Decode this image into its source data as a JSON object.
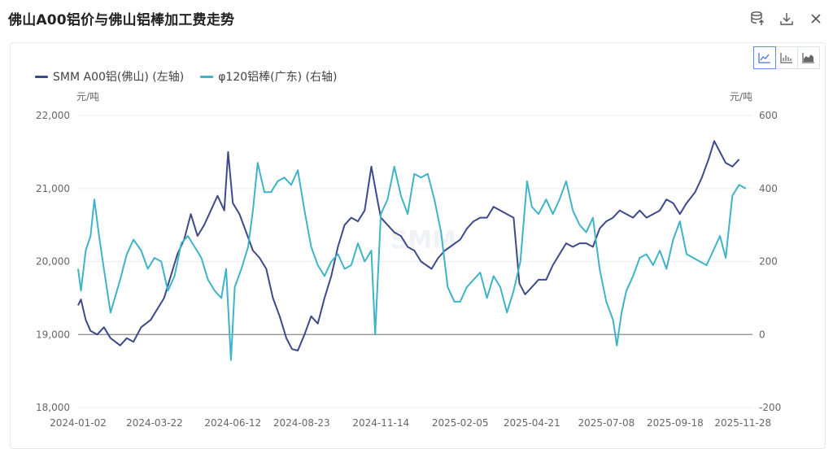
{
  "header": {
    "title": "佛山A00铝价与佛山铝棒加工费走势",
    "actions": [
      {
        "name": "database-export-icon"
      },
      {
        "name": "download-icon"
      },
      {
        "name": "close-icon"
      }
    ]
  },
  "toolbar": {
    "chart_types": [
      {
        "name": "line-chart-icon",
        "active": true
      },
      {
        "name": "bar-chart-icon",
        "active": false
      },
      {
        "name": "area-chart-icon",
        "active": false
      }
    ]
  },
  "watermark": "SMM",
  "colors": {
    "left_series": "#3d4a8a",
    "right_series": "#3fb3c8",
    "axis_text": "#666666",
    "grid": "#eeeeee",
    "zero_line": "#888888"
  },
  "chart_data": {
    "type": "line",
    "grid": true,
    "legend_position": "top-left",
    "x_tick_labels": [
      "2024-01-02",
      "2024-03-22",
      "2024-06-12",
      "2024-08-23",
      "2024-11-14",
      "2025-02-05",
      "2025-04-21",
      "2025-07-08",
      "2025-09-18",
      "2025-11-28"
    ],
    "x_range": [
      "2024-01-02",
      "2025-12-08"
    ],
    "y_left": {
      "unit": "元/吨",
      "ylim": [
        18000,
        22000
      ],
      "ticks": [
        "22,000",
        "21,000",
        "20,000",
        "19,000",
        "18,000"
      ]
    },
    "y_right": {
      "unit": "元/吨",
      "ylim": [
        -200,
        600
      ],
      "ticks": [
        "600",
        "400",
        "200",
        "0",
        "-200"
      ]
    },
    "series": [
      {
        "name": "SMM A00铝(佛山) (左轴)",
        "axis": "left",
        "points": [
          [
            "2024-01-02",
            19400
          ],
          [
            "2024-01-05",
            19480
          ],
          [
            "2024-01-10",
            19200
          ],
          [
            "2024-01-15",
            19050
          ],
          [
            "2024-01-22",
            19000
          ],
          [
            "2024-01-29",
            19100
          ],
          [
            "2024-02-05",
            18950
          ],
          [
            "2024-02-15",
            18850
          ],
          [
            "2024-02-22",
            18950
          ],
          [
            "2024-02-29",
            18900
          ],
          [
            "2024-03-08",
            19100
          ],
          [
            "2024-03-18",
            19200
          ],
          [
            "2024-03-25",
            19350
          ],
          [
            "2024-04-01",
            19500
          ],
          [
            "2024-04-08",
            19800
          ],
          [
            "2024-04-15",
            20100
          ],
          [
            "2024-04-22",
            20300
          ],
          [
            "2024-04-29",
            20650
          ],
          [
            "2024-05-06",
            20350
          ],
          [
            "2024-05-13",
            20500
          ],
          [
            "2024-05-20",
            20700
          ],
          [
            "2024-05-27",
            20900
          ],
          [
            "2024-06-03",
            20700
          ],
          [
            "2024-06-07",
            21500
          ],
          [
            "2024-06-12",
            20800
          ],
          [
            "2024-06-19",
            20650
          ],
          [
            "2024-06-26",
            20400
          ],
          [
            "2024-07-03",
            20150
          ],
          [
            "2024-07-10",
            20050
          ],
          [
            "2024-07-17",
            19900
          ],
          [
            "2024-07-24",
            19500
          ],
          [
            "2024-07-31",
            19250
          ],
          [
            "2024-08-07",
            18950
          ],
          [
            "2024-08-13",
            18800
          ],
          [
            "2024-08-19",
            18780
          ],
          [
            "2024-08-26",
            19000
          ],
          [
            "2024-09-02",
            19250
          ],
          [
            "2024-09-09",
            19150
          ],
          [
            "2024-09-16",
            19500
          ],
          [
            "2024-09-23",
            19800
          ],
          [
            "2024-09-30",
            20200
          ],
          [
            "2024-10-07",
            20500
          ],
          [
            "2024-10-14",
            20600
          ],
          [
            "2024-10-21",
            20550
          ],
          [
            "2024-10-28",
            20700
          ],
          [
            "2024-11-04",
            21300
          ],
          [
            "2024-11-11",
            20800
          ],
          [
            "2024-11-14",
            20600
          ],
          [
            "2024-11-21",
            20500
          ],
          [
            "2024-11-28",
            20400
          ],
          [
            "2024-12-05",
            20350
          ],
          [
            "2024-12-12",
            20200
          ],
          [
            "2024-12-19",
            20150
          ],
          [
            "2024-12-26",
            20000
          ],
          [
            "2025-01-06",
            19900
          ],
          [
            "2025-01-13",
            20050
          ],
          [
            "2025-01-20",
            20150
          ],
          [
            "2025-02-05",
            20300
          ],
          [
            "2025-02-12",
            20450
          ],
          [
            "2025-02-19",
            20550
          ],
          [
            "2025-02-26",
            20600
          ],
          [
            "2025-03-05",
            20600
          ],
          [
            "2025-03-12",
            20750
          ],
          [
            "2025-03-19",
            20700
          ],
          [
            "2025-03-26",
            20650
          ],
          [
            "2025-04-02",
            20600
          ],
          [
            "2025-04-08",
            19700
          ],
          [
            "2025-04-14",
            19550
          ],
          [
            "2025-04-21",
            19650
          ],
          [
            "2025-04-28",
            19750
          ],
          [
            "2025-05-06",
            19750
          ],
          [
            "2025-05-13",
            19950
          ],
          [
            "2025-05-20",
            20100
          ],
          [
            "2025-05-27",
            20250
          ],
          [
            "2025-06-03",
            20200
          ],
          [
            "2025-06-10",
            20250
          ],
          [
            "2025-06-17",
            20250
          ],
          [
            "2025-06-24",
            20200
          ],
          [
            "2025-07-01",
            20450
          ],
          [
            "2025-07-08",
            20550
          ],
          [
            "2025-07-15",
            20600
          ],
          [
            "2025-07-22",
            20700
          ],
          [
            "2025-07-29",
            20650
          ],
          [
            "2025-08-05",
            20600
          ],
          [
            "2025-08-12",
            20700
          ],
          [
            "2025-08-19",
            20600
          ],
          [
            "2025-08-26",
            20650
          ],
          [
            "2025-09-02",
            20700
          ],
          [
            "2025-09-09",
            20850
          ],
          [
            "2025-09-16",
            20800
          ],
          [
            "2025-09-23",
            20650
          ],
          [
            "2025-09-30",
            20800
          ],
          [
            "2025-10-09",
            20950
          ],
          [
            "2025-10-16",
            21150
          ],
          [
            "2025-10-23",
            21400
          ],
          [
            "2025-10-29",
            21650
          ],
          [
            "2025-11-04",
            21500
          ],
          [
            "2025-11-10",
            21350
          ],
          [
            "2025-11-17",
            21300
          ],
          [
            "2025-11-24",
            21400
          ]
        ]
      },
      {
        "name": "φ120铝棒(广东) (右轴)",
        "axis": "right",
        "points": [
          [
            "2024-01-02",
            180
          ],
          [
            "2024-01-05",
            120
          ],
          [
            "2024-01-10",
            230
          ],
          [
            "2024-01-15",
            270
          ],
          [
            "2024-01-19",
            370
          ],
          [
            "2024-01-24",
            270
          ],
          [
            "2024-01-29",
            180
          ],
          [
            "2024-02-05",
            60
          ],
          [
            "2024-02-15",
            150
          ],
          [
            "2024-02-22",
            220
          ],
          [
            "2024-02-29",
            260
          ],
          [
            "2024-03-08",
            230
          ],
          [
            "2024-03-15",
            180
          ],
          [
            "2024-03-22",
            210
          ],
          [
            "2024-03-29",
            200
          ],
          [
            "2024-04-05",
            120
          ],
          [
            "2024-04-12",
            160
          ],
          [
            "2024-04-19",
            250
          ],
          [
            "2024-04-26",
            270
          ],
          [
            "2024-05-03",
            240
          ],
          [
            "2024-05-10",
            210
          ],
          [
            "2024-05-17",
            150
          ],
          [
            "2024-05-24",
            120
          ],
          [
            "2024-05-31",
            100
          ],
          [
            "2024-06-05",
            180
          ],
          [
            "2024-06-10",
            -70
          ],
          [
            "2024-06-14",
            130
          ],
          [
            "2024-06-21",
            180
          ],
          [
            "2024-06-28",
            240
          ],
          [
            "2024-07-03",
            340
          ],
          [
            "2024-07-08",
            470
          ],
          [
            "2024-07-15",
            390
          ],
          [
            "2024-07-22",
            390
          ],
          [
            "2024-07-29",
            420
          ],
          [
            "2024-08-05",
            430
          ],
          [
            "2024-08-12",
            410
          ],
          [
            "2024-08-19",
            450
          ],
          [
            "2024-08-26",
            340
          ],
          [
            "2024-09-02",
            240
          ],
          [
            "2024-09-09",
            190
          ],
          [
            "2024-09-16",
            160
          ],
          [
            "2024-09-23",
            200
          ],
          [
            "2024-09-30",
            220
          ],
          [
            "2024-10-07",
            180
          ],
          [
            "2024-10-14",
            190
          ],
          [
            "2024-10-21",
            250
          ],
          [
            "2024-10-28",
            200
          ],
          [
            "2024-11-04",
            230
          ],
          [
            "2024-11-08",
            0
          ],
          [
            "2024-11-14",
            330
          ],
          [
            "2024-11-21",
            370
          ],
          [
            "2024-11-28",
            460
          ],
          [
            "2024-12-05",
            380
          ],
          [
            "2024-12-12",
            330
          ],
          [
            "2024-12-19",
            440
          ],
          [
            "2024-12-26",
            430
          ],
          [
            "2025-01-02",
            440
          ],
          [
            "2025-01-09",
            370
          ],
          [
            "2025-01-16",
            280
          ],
          [
            "2025-01-23",
            130
          ],
          [
            "2025-01-30",
            90
          ],
          [
            "2025-02-05",
            90
          ],
          [
            "2025-02-12",
            130
          ],
          [
            "2025-02-19",
            150
          ],
          [
            "2025-02-26",
            170
          ],
          [
            "2025-03-05",
            100
          ],
          [
            "2025-03-12",
            160
          ],
          [
            "2025-03-19",
            130
          ],
          [
            "2025-03-26",
            60
          ],
          [
            "2025-04-02",
            120
          ],
          [
            "2025-04-09",
            200
          ],
          [
            "2025-04-16",
            420
          ],
          [
            "2025-04-21",
            350
          ],
          [
            "2025-04-28",
            330
          ],
          [
            "2025-05-06",
            370
          ],
          [
            "2025-05-13",
            330
          ],
          [
            "2025-05-20",
            370
          ],
          [
            "2025-05-27",
            420
          ],
          [
            "2025-06-03",
            340
          ],
          [
            "2025-06-10",
            300
          ],
          [
            "2025-06-17",
            280
          ],
          [
            "2025-06-24",
            320
          ],
          [
            "2025-07-01",
            180
          ],
          [
            "2025-07-08",
            90
          ],
          [
            "2025-07-15",
            40
          ],
          [
            "2025-07-19",
            -30
          ],
          [
            "2025-07-24",
            60
          ],
          [
            "2025-07-29",
            120
          ],
          [
            "2025-08-05",
            160
          ],
          [
            "2025-08-12",
            210
          ],
          [
            "2025-08-19",
            220
          ],
          [
            "2025-08-26",
            190
          ],
          [
            "2025-09-02",
            230
          ],
          [
            "2025-09-09",
            180
          ],
          [
            "2025-09-16",
            260
          ],
          [
            "2025-09-23",
            310
          ],
          [
            "2025-09-30",
            220
          ],
          [
            "2025-10-07",
            210
          ],
          [
            "2025-10-14",
            200
          ],
          [
            "2025-10-21",
            190
          ],
          [
            "2025-10-28",
            230
          ],
          [
            "2025-11-04",
            270
          ],
          [
            "2025-11-10",
            210
          ],
          [
            "2025-11-17",
            380
          ],
          [
            "2025-11-24",
            410
          ],
          [
            "2025-12-01",
            400
          ]
        ]
      }
    ]
  }
}
